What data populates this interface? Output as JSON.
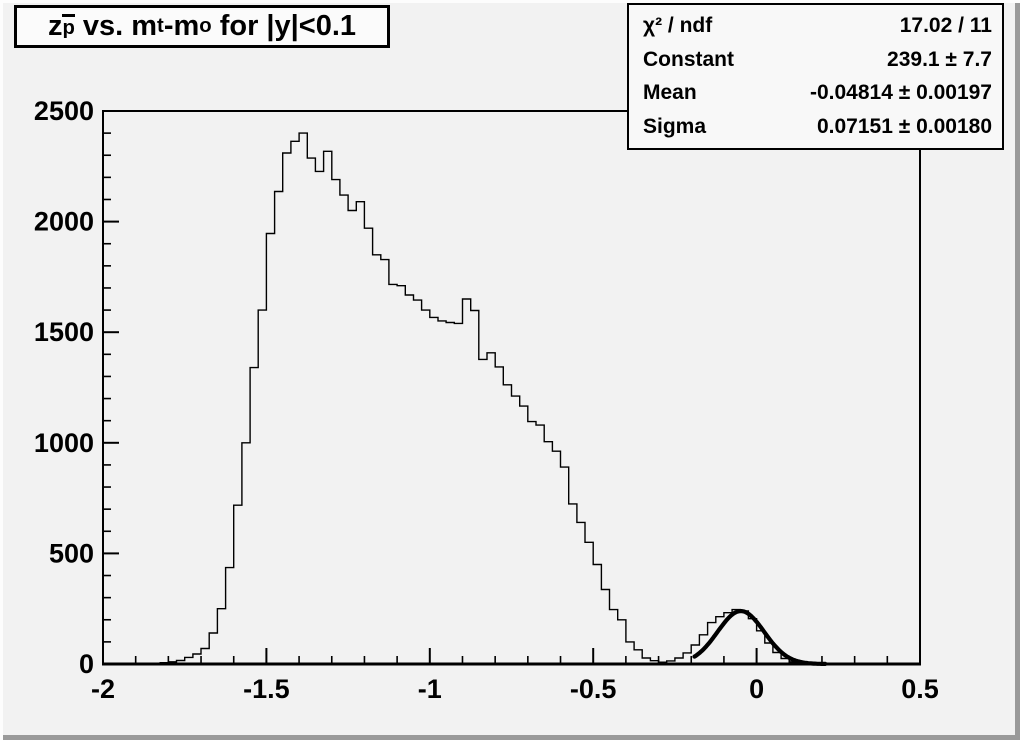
{
  "canvas": {
    "background": "#f2f2f2",
    "bevel_light": "#fdfdfd",
    "bevel_dark": "#9a9a9a",
    "line_color": "#000000"
  },
  "title": {
    "segments": [
      {
        "text": "z"
      },
      {
        "text": "p"
      },
      {
        "text": " vs. m"
      },
      {
        "text": "t"
      },
      {
        "text": "-m"
      },
      {
        "text": "o"
      },
      {
        "text": " for |y|<0.1"
      }
    ]
  },
  "stats": {
    "rows": [
      {
        "label": "χ² / ndf",
        "value": "17.02 / 11"
      },
      {
        "label": "Constant",
        "value": "239.1 ± 7.7"
      },
      {
        "label": "Mean",
        "value": "-0.04814 ± 0.00197"
      },
      {
        "label": "Sigma",
        "value": "0.07151 ± 0.00180"
      }
    ]
  },
  "chart_data": {
    "type": "bar",
    "subtype": "step-histogram-with-gaussian-fit",
    "title": "z_pbar vs. m_t-m_o for |y|<0.1",
    "xlabel": "",
    "ylabel": "",
    "x_range": [
      -2,
      0.5
    ],
    "y_range": [
      0,
      2500
    ],
    "grid": false,
    "legend": false,
    "bin_start": -2,
    "bin_width": 0.025,
    "bin_values": [
      0,
      0,
      0,
      0,
      0,
      0,
      3,
      6,
      10,
      16,
      30,
      45,
      70,
      140,
      250,
      436,
      718,
      1000,
      1340,
      1600,
      1946,
      2136,
      2310,
      2363,
      2400,
      2287,
      2227,
      2318,
      2190,
      2120,
      2050,
      2090,
      1970,
      1850,
      1828,
      1716,
      1710,
      1668,
      1645,
      1600,
      1567,
      1551,
      1544,
      1540,
      1650,
      1598,
      1377,
      1407,
      1343,
      1262,
      1211,
      1166,
      1096,
      1080,
      1005,
      962,
      890,
      724,
      640,
      550,
      450,
      337,
      246,
      200,
      100,
      64,
      27,
      15,
      8,
      14,
      27,
      50,
      86,
      132,
      187,
      214,
      232,
      246,
      240,
      205,
      150,
      95,
      52,
      25,
      10,
      4,
      2,
      1,
      0,
      0,
      0,
      0,
      0,
      0,
      0,
      0,
      0,
      0,
      0,
      0
    ],
    "x_ticks": {
      "major": [
        -2,
        -1.5,
        -1,
        -0.5,
        0,
        0.5
      ],
      "labels": [
        "-2",
        "-1.5",
        "-1",
        "-0.5",
        "0",
        "0.5"
      ],
      "minor_step": 0.1
    },
    "y_ticks": {
      "major": [
        0,
        500,
        1000,
        1500,
        2000,
        2500
      ],
      "labels": [
        "0",
        "500",
        "1000",
        "1500",
        "2000",
        "2500"
      ],
      "minor_step": 100
    },
    "fit": {
      "shape": "gaussian",
      "constant": 239.1,
      "mean": -0.04814,
      "sigma": 0.07151,
      "draw_range": [
        -0.19,
        0.21
      ]
    }
  }
}
